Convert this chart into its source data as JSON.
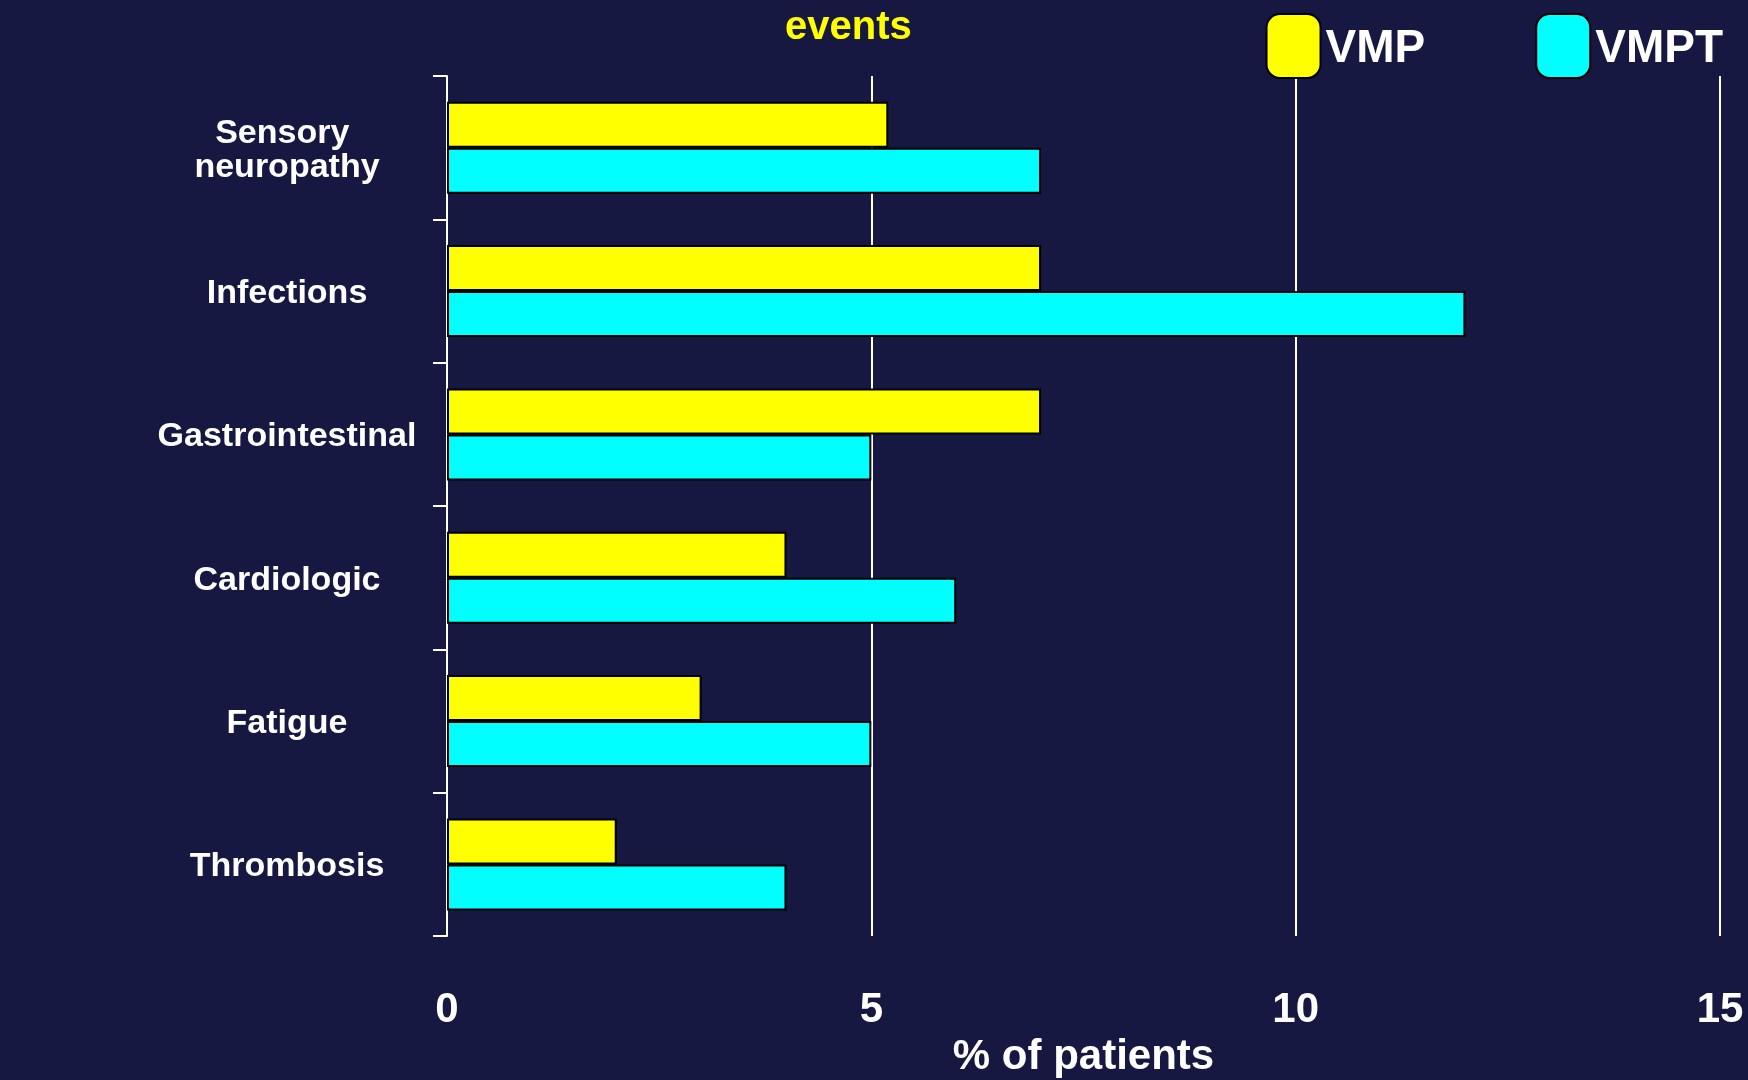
{
  "chart_data": {
    "type": "bar",
    "orientation": "horizontal",
    "title": "events",
    "xlabel": "% of patients",
    "categories": [
      "Sensory neuropathy",
      "Infections",
      "Gastrointestinal",
      "Cardiologic",
      "Fatigue",
      "Thrombosis"
    ],
    "series": [
      {
        "name": "VMP",
        "color": "#ffff00",
        "values": [
          5.2,
          7,
          7,
          4,
          3,
          2
        ]
      },
      {
        "name": "VMPT",
        "color": "#00ffff",
        "values": [
          7,
          12,
          5,
          6,
          5,
          4
        ]
      }
    ],
    "xlim": [
      0,
      15
    ],
    "xticks": [
      0,
      5,
      10,
      15
    ],
    "grid": "x",
    "legend": "top right"
  }
}
